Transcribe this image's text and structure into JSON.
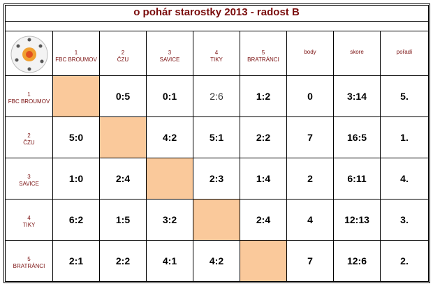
{
  "title": "o pohár starostky 2013 - radost B",
  "columns": [
    "body",
    "skore",
    "pořadí"
  ],
  "teams": [
    {
      "number": "1",
      "name": "FBC BROUMOV"
    },
    {
      "number": "2",
      "name": "ČZU"
    },
    {
      "number": "3",
      "name": "SAVICE"
    },
    {
      "number": "4",
      "name": "TIKY"
    },
    {
      "number": "5",
      "name": "BRATRÁNCI"
    }
  ],
  "rows": [
    {
      "results": [
        null,
        "0:5",
        "0:1",
        "2:6",
        "1:2"
      ],
      "body": 0,
      "skore": "3:14",
      "poradi": "5."
    },
    {
      "results": [
        "5:0",
        null,
        "4:2",
        "5:1",
        "2:2"
      ],
      "body": 7,
      "skore": "16:5",
      "poradi": "1."
    },
    {
      "results": [
        "1:0",
        "2:4",
        null,
        "2:3",
        "1:4"
      ],
      "body": 2,
      "skore": "6:11",
      "poradi": "4."
    },
    {
      "results": [
        "6:2",
        "1:5",
        "3:2",
        null,
        "2:4"
      ],
      "body": 4,
      "skore": "12:13",
      "poradi": "3."
    },
    {
      "results": [
        "2:1",
        "2:2",
        "4:1",
        "4:2",
        null
      ],
      "body": 7,
      "skore": "12:6",
      "poradi": "2."
    }
  ]
}
